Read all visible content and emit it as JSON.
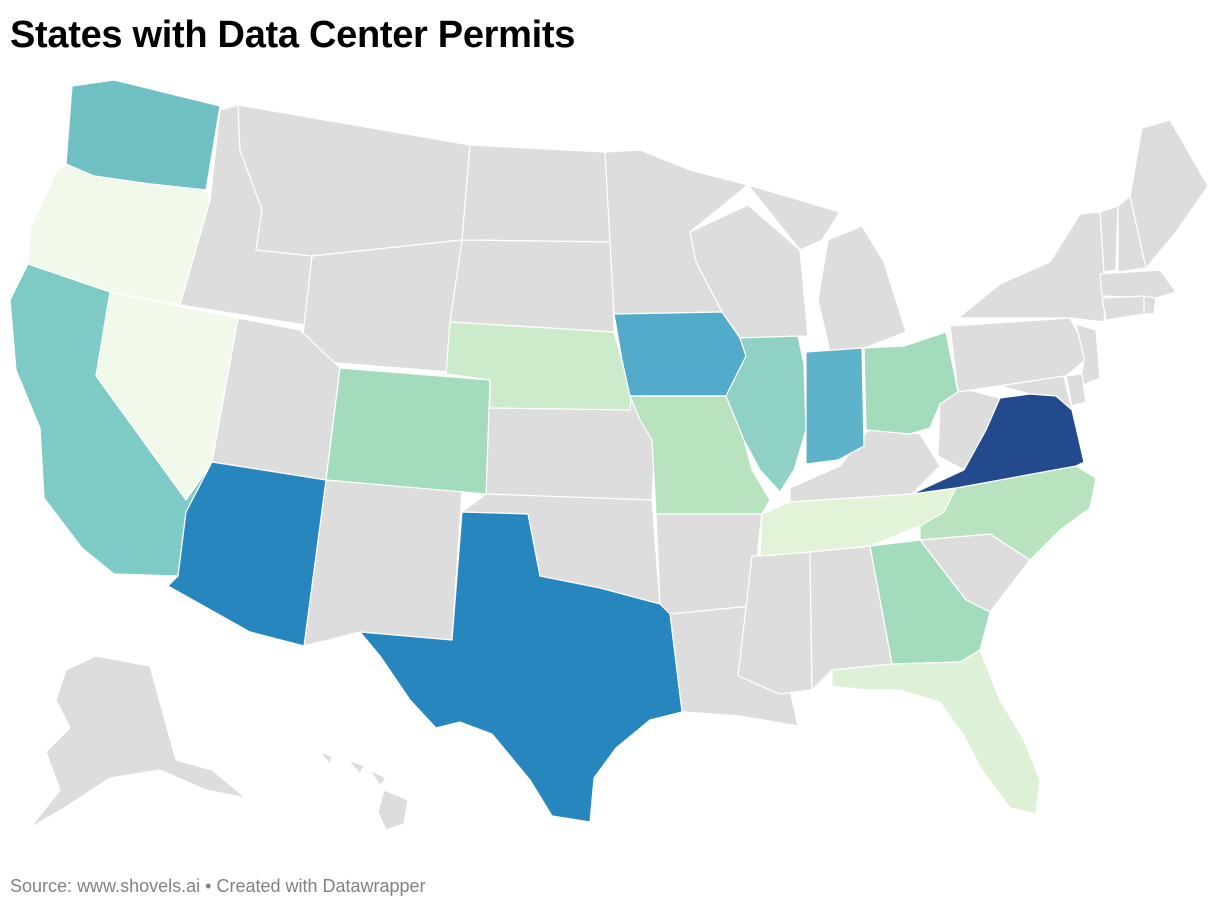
{
  "title": "States with Data Center Permits",
  "footer": {
    "source_label": "Source:",
    "source_value": "www.shovels.ai",
    "separator": "•",
    "credit": "Created with Datawrapper"
  },
  "map": {
    "type": "choropleth",
    "region": "United States",
    "default_color": "#dddddd",
    "border_color": "#ffffff",
    "states": [
      {
        "state": "WA",
        "color": "#6ec0c2"
      },
      {
        "state": "OR",
        "color": "#f1f9ea"
      },
      {
        "state": "CA",
        "color": "#7dcbc4"
      },
      {
        "state": "NV",
        "color": "#f1f9ea"
      },
      {
        "state": "AZ",
        "color": "#2886be"
      },
      {
        "state": "CO",
        "color": "#a3dcbc"
      },
      {
        "state": "NE",
        "color": "#ccebcb"
      },
      {
        "state": "IA",
        "color": "#53abcb"
      },
      {
        "state": "MO",
        "color": "#b9e3bf"
      },
      {
        "state": "IL",
        "color": "#8fd2c5"
      },
      {
        "state": "IN",
        "color": "#5eb3cb"
      },
      {
        "state": "OH",
        "color": "#a3dcbc"
      },
      {
        "state": "TX",
        "color": "#2886be"
      },
      {
        "state": "TN",
        "color": "#e2f3d8"
      },
      {
        "state": "GA",
        "color": "#a3dcbc"
      },
      {
        "state": "NC",
        "color": "#b9e3bf"
      },
      {
        "state": "VA",
        "color": "#224a8c"
      },
      {
        "state": "FL",
        "color": "#dcf1d5"
      }
    ]
  }
}
